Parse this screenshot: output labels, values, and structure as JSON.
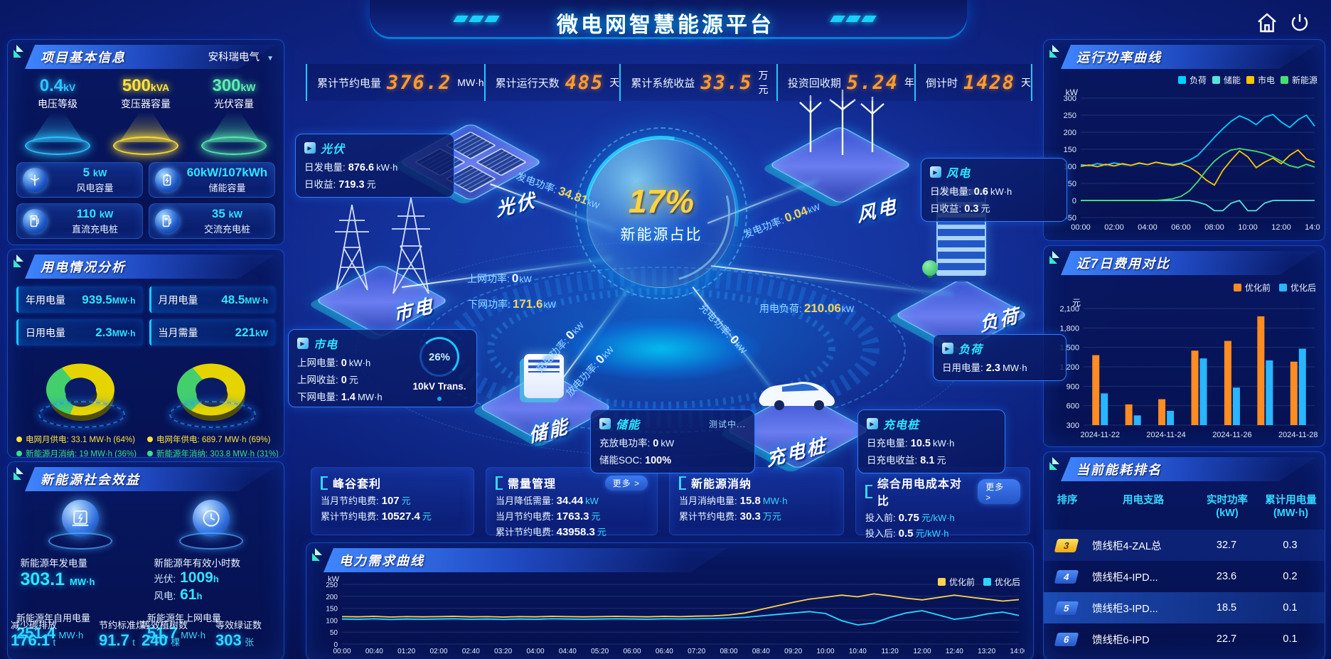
{
  "title": "微电网智慧能源平台",
  "colors": {
    "accent_cyan": "#2ee6ff",
    "accent_orange": "#ff9c2e",
    "accent_yellow": "#ffd400",
    "accent_green": "#3be08c"
  },
  "stats_bar": [
    {
      "label": "累计节约电量",
      "value": "376.2",
      "unit": "MW·h"
    },
    {
      "label": "累计运行天数",
      "value": "485",
      "unit": "天"
    },
    {
      "label": "累计系统收益",
      "value": "33.5",
      "unit": "万元"
    },
    {
      "label": "投资回收期",
      "value": "5.24",
      "unit": "年"
    },
    {
      "label": "倒计时",
      "value": "1428",
      "unit": "天"
    }
  ],
  "project_info": {
    "title": "项目基本信息",
    "company": "安科瑞电气",
    "pedestals": [
      {
        "value": "0.4",
        "unit": "kV",
        "label": "电压等级",
        "color": "#2ec6ff"
      },
      {
        "value": "500",
        "unit": "kVA",
        "label": "变压器容量",
        "color": "#ffe33a"
      },
      {
        "value": "300",
        "unit": "kW",
        "label": "光伏容量",
        "color": "#5af0b0"
      }
    ],
    "cards": [
      {
        "value": "5",
        "unit": "kW",
        "label": "风电容量",
        "icon": "wind-icon"
      },
      {
        "value": "60kW/107kWh",
        "unit": "",
        "label": "储能容量",
        "icon": "battery-icon"
      },
      {
        "value": "110",
        "unit": "kW",
        "label": "直流充电桩",
        "icon": "charger-icon"
      },
      {
        "value": "35",
        "unit": "kW",
        "label": "交流充电桩",
        "icon": "charger-icon"
      }
    ]
  },
  "usage": {
    "title": "用电情况分析",
    "boxes": [
      {
        "label": "年用电量",
        "value": "939.5",
        "unit": "MW·h"
      },
      {
        "label": "月用电量",
        "value": "48.5",
        "unit": "MW·h"
      },
      {
        "label": "日用电量",
        "value": "2.3",
        "unit": "MW·h"
      },
      {
        "label": "当月需量",
        "value": "221",
        "unit": "kW"
      }
    ],
    "donuts": [
      {
        "values": [
          64,
          36
        ],
        "colors": [
          "#e5d400",
          "#43cf6c"
        ]
      },
      {
        "values": [
          69,
          31
        ],
        "colors": [
          "#e5d400",
          "#43cf6c"
        ]
      }
    ],
    "legend": [
      {
        "label": "电网月供电:",
        "value": "33.1 MW·h (64%)",
        "color": "#ffe33a"
      },
      {
        "label": "电网年供电:",
        "value": "689.7 MW·h (69%)",
        "color": "#ffe33a"
      },
      {
        "label": "新能源月消纳:",
        "value": "19 MW·h (36%)",
        "color": "#3be08c"
      },
      {
        "label": "新能源年消纳:",
        "value": "303.8 MW·h (31%)",
        "color": "#3be08c"
      }
    ]
  },
  "social": {
    "title": "新能源社会效益",
    "gen_label": "新能源年发电量",
    "gen_value": "303.1",
    "gen_unit": "MW·h",
    "hours_label": "新能源年有效小时数",
    "pv_label": "光伏:",
    "pv_value": "1009",
    "pv_unit": "h",
    "wind_label": "风电:",
    "wind_value": "61",
    "wind_unit": "h",
    "bottom": [
      {
        "label": "新能源年自用电量",
        "value": "251.4",
        "unit": "MW·h"
      },
      {
        "label": "减少碳排放",
        "value": "176.1",
        "unit": "t"
      },
      {
        "label": "节约标准煤",
        "value": "91.7",
        "unit": "t"
      },
      {
        "label": "新能源年上网电量",
        "value": "51.7",
        "unit": "MW·h"
      },
      {
        "label": "等效植树数",
        "value": "240",
        "unit": "棵"
      },
      {
        "label": "等效绿证数",
        "value": "303",
        "unit": "张"
      }
    ]
  },
  "center": {
    "core_value": "17%",
    "core_label": "新能源占比",
    "transformer_pct": "26%",
    "transformer_label": "10kV Trans.",
    "nodes": {
      "pv": "光伏",
      "wind": "风电",
      "grid": "市电",
      "storage": "储能",
      "charger": "充电桩",
      "load": "负荷"
    },
    "boxes": {
      "pv": {
        "title": "光伏",
        "rows": [
          {
            "label": "日发电量:",
            "value": "876.6",
            "unit": "kW·h"
          },
          {
            "label": "日收益:",
            "value": "719.3",
            "unit": "元"
          }
        ]
      },
      "wind": {
        "title": "风电",
        "rows": [
          {
            "label": "日发电量:",
            "value": "0.6",
            "unit": "kW·h"
          },
          {
            "label": "日收益:",
            "value": "0.3",
            "unit": "元"
          }
        ]
      },
      "grid": {
        "title": "市电",
        "rows": [
          {
            "label": "上网电量:",
            "value": "0",
            "unit": "kW·h"
          },
          {
            "label": "上网收益:",
            "value": "0",
            "unit": "元"
          },
          {
            "label": "下网电量:",
            "value": "1.4",
            "unit": "MW·h"
          }
        ]
      },
      "storage": {
        "title": "储能",
        "badge": "测试中...",
        "rows": [
          {
            "label": "充放电功率:",
            "value": "0",
            "unit": "kW"
          },
          {
            "label": "储能SOC:",
            "value": "100%",
            "unit": ""
          }
        ]
      },
      "charger": {
        "title": "充电桩",
        "rows": [
          {
            "label": "日充电量:",
            "value": "10.5",
            "unit": "kW·h"
          },
          {
            "label": "日充电收益:",
            "value": "8.1",
            "unit": "元"
          }
        ]
      },
      "load": {
        "title": "负荷",
        "rows": [
          {
            "label": "日用电量:",
            "value": "2.3",
            "unit": "MW·h"
          }
        ]
      }
    },
    "flows": [
      {
        "label": "发电功率:",
        "value": "34.81",
        "unit": "kW"
      },
      {
        "label": "上网功率:",
        "value": "0",
        "unit": "kW"
      },
      {
        "label": "下网功率:",
        "value": "171.6",
        "unit": "kW"
      },
      {
        "label": "发电功率:",
        "value": "0.04",
        "unit": "kW"
      },
      {
        "label": "用电负荷:",
        "value": "210.06",
        "unit": "kW"
      },
      {
        "label": "充电功率:",
        "value": "0",
        "unit": "kW"
      },
      {
        "label": "放电功率:",
        "value": "0",
        "unit": "kW"
      },
      {
        "label": "充电功率:",
        "value": "0",
        "unit": "kW"
      }
    ]
  },
  "benefits": [
    {
      "title": "峰谷套利",
      "more": "",
      "rows": [
        {
          "label": "当月节约电费:",
          "value": "107",
          "unit": "元"
        },
        {
          "label": "累计节约电费:",
          "value": "10527.4",
          "unit": "元"
        }
      ]
    },
    {
      "title": "需量管理",
      "more": "更多 >",
      "rows": [
        {
          "label": "当月降低需量:",
          "value": "34.44",
          "unit": "kW"
        },
        {
          "label": "当月节约电费:",
          "value": "1763.3",
          "unit": "元"
        },
        {
          "label": "累计节约电费:",
          "value": "43958.3",
          "unit": "元"
        }
      ]
    },
    {
      "title": "新能源消纳",
      "more": "",
      "rows": [
        {
          "label": "当月消纳电量:",
          "value": "15.8",
          "unit": "MW·h"
        },
        {
          "label": "累计节约电费:",
          "value": "30.3",
          "unit": "万元"
        }
      ]
    },
    {
      "title": "综合用电成本对比",
      "more": "更多 >",
      "rows": [
        {
          "label": "投入前:",
          "value": "0.75",
          "unit": "元/kW·h"
        },
        {
          "label": "投入后:",
          "value": "0.5",
          "unit": "元/kW·h"
        }
      ]
    }
  ],
  "chart_data": [
    {
      "id": "power_curve",
      "type": "line",
      "title": "运行功率曲线",
      "ylabel": "kW",
      "ylim": [
        -50,
        300
      ],
      "yticks": [
        300,
        250,
        200,
        150,
        100,
        50,
        0,
        -50
      ],
      "xticks": [
        "00:00",
        "02:00",
        "04:00",
        "06:00",
        "08:00",
        "10:00",
        "12:00",
        "14:00"
      ],
      "legend_position": "top-right",
      "series": [
        {
          "name": "负荷",
          "color": "#00d0ff",
          "values": [
            105,
            102,
            108,
            104,
            110,
            106,
            103,
            109,
            105,
            112,
            108,
            105,
            110,
            118,
            132,
            158,
            185,
            210,
            232,
            248,
            238,
            222,
            244,
            252,
            230,
            214,
            236,
            250,
            218
          ]
        },
        {
          "name": "储能",
          "color": "#57e3d8",
          "values": [
            0,
            0,
            0,
            0,
            0,
            0,
            0,
            0,
            0,
            0,
            0,
            0,
            0,
            0,
            -5,
            -12,
            -30,
            -30,
            -8,
            0,
            -30,
            -30,
            -8,
            0,
            0,
            0,
            0,
            0,
            0
          ]
        },
        {
          "name": "市电",
          "color": "#ffc400",
          "values": [
            100,
            104,
            99,
            106,
            101,
            108,
            103,
            110,
            105,
            112,
            107,
            103,
            108,
            98,
            82,
            60,
            45,
            88,
            118,
            145,
            128,
            96,
            112,
            124,
            108,
            132,
            148,
            122,
            112
          ]
        },
        {
          "name": "新能源",
          "color": "#45e06f",
          "values": [
            0,
            0,
            0,
            0,
            0,
            0,
            0,
            0,
            0,
            0,
            2,
            5,
            12,
            28,
            55,
            88,
            115,
            135,
            148,
            152,
            148,
            144,
            138,
            128,
            115,
            102,
            96,
            106,
            98
          ]
        }
      ]
    },
    {
      "id": "cost_compare",
      "type": "bar",
      "title": "近7日费用对比",
      "ylabel": "元",
      "ylim": [
        300,
        2100
      ],
      "yticks": [
        "2,100",
        "1,800",
        "1,500",
        "1,200",
        "900",
        "600",
        "300"
      ],
      "categories": [
        "2024-11-22",
        "2024-11-23",
        "2024-11-24",
        "2024-11-25",
        "2024-11-26",
        "2024-11-27",
        "2024-11-28"
      ],
      "xticks": [
        "2024-11-22",
        "2024-11-24",
        "2024-11-26",
        "2024-11-28"
      ],
      "legend_position": "top-right",
      "series": [
        {
          "name": "优化前",
          "color": "#ff8c21",
          "values": [
            1380,
            620,
            700,
            1450,
            1600,
            1980,
            1280
          ]
        },
        {
          "name": "优化后",
          "color": "#29b6ff",
          "values": [
            790,
            450,
            520,
            1330,
            880,
            1300,
            1480
          ]
        }
      ]
    },
    {
      "id": "demand_curve",
      "type": "line",
      "title": "电力需求曲线",
      "ylabel": "kW",
      "ylim": [
        0,
        250
      ],
      "yticks": [
        250,
        200,
        150,
        100,
        50,
        0
      ],
      "xticks": [
        "00:00",
        "00:40",
        "01:20",
        "02:00",
        "02:40",
        "03:20",
        "04:00",
        "04:40",
        "05:20",
        "06:00",
        "06:40",
        "07:20",
        "08:00",
        "08:40",
        "09:20",
        "10:00",
        "10:40",
        "11:20",
        "12:00",
        "12:40",
        "13:20",
        "14:00"
      ],
      "legend_position": "top-right",
      "series": [
        {
          "name": "优化前",
          "color": "#ffd34d",
          "values": [
            115,
            114,
            116,
            113,
            115,
            114,
            115,
            116,
            114,
            115,
            113,
            115,
            114,
            116,
            115,
            114,
            115,
            116,
            115,
            114,
            116,
            115,
            117,
            118,
            122,
            130,
            145,
            160,
            175,
            188,
            196,
            205,
            198,
            210,
            202,
            192,
            185,
            195,
            205,
            196,
            188,
            180,
            186
          ]
        },
        {
          "name": "优化后",
          "color": "#29d8ff",
          "values": [
            105,
            104,
            106,
            103,
            105,
            104,
            105,
            106,
            104,
            105,
            103,
            105,
            104,
            106,
            105,
            104,
            105,
            106,
            105,
            104,
            106,
            105,
            106,
            107,
            109,
            112,
            118,
            124,
            130,
            136,
            128,
            98,
            80,
            88,
            112,
            130,
            140,
            122,
            104,
            112,
            126,
            134,
            120
          ]
        }
      ]
    }
  ],
  "ranking": {
    "title": "当前能耗排名",
    "headers": [
      {
        "t": "排序",
        "sub": ""
      },
      {
        "t": "用电支路",
        "sub": ""
      },
      {
        "t": "实时功率",
        "sub": "(kW)"
      },
      {
        "t": "累计用电量",
        "sub": "(MW·h)"
      }
    ],
    "rows": [
      {
        "rank": "3",
        "branch": "馈线柜4-ZAL总",
        "power": "32.7",
        "energy": "0.3",
        "highlight": false,
        "rank_style": "gold"
      },
      {
        "rank": "4",
        "branch": "馈线柜4-IPD...",
        "power": "23.6",
        "energy": "0.2",
        "highlight": false,
        "rank_style": "blue"
      },
      {
        "rank": "5",
        "branch": "馈线柜3-IPD...",
        "power": "18.5",
        "energy": "0.1",
        "highlight": true,
        "rank_style": "blue"
      },
      {
        "rank": "6",
        "branch": "馈线柜6-IPD",
        "power": "22.7",
        "energy": "0.1",
        "highlight": false,
        "rank_style": "blue"
      }
    ]
  }
}
